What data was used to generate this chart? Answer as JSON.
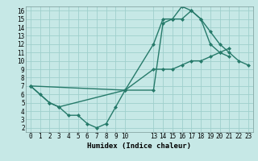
{
  "background_color": "#c6e8e6",
  "grid_color": "#9fcfcc",
  "line_color": "#267a6a",
  "marker_color": "#267a6a",
  "xlabel": "Humidex (Indice chaleur)",
  "xlim": [
    -0.5,
    23.5
  ],
  "ylim": [
    1.5,
    16.5
  ],
  "yticks": [
    2,
    3,
    4,
    5,
    6,
    7,
    8,
    9,
    10,
    11,
    12,
    13,
    14,
    15,
    16
  ],
  "xticks": [
    0,
    1,
    2,
    3,
    4,
    5,
    6,
    7,
    8,
    9,
    10,
    13,
    14,
    15,
    16,
    17,
    18,
    19,
    20,
    21,
    22,
    23
  ],
  "line1_x": [
    0,
    1,
    2,
    3,
    4,
    5,
    6,
    7,
    8,
    9,
    10,
    13,
    14,
    15,
    16,
    17,
    18,
    19,
    20,
    21
  ],
  "line1_y": [
    7,
    6,
    5,
    4.5,
    3.5,
    3.5,
    2.5,
    2,
    2.5,
    4.5,
    6.5,
    6.5,
    14.5,
    15,
    15,
    16,
    15,
    12,
    11,
    10.5
  ],
  "line2_x": [
    0,
    2,
    3,
    10,
    13,
    14,
    15,
    16,
    17,
    18,
    19,
    20,
    21,
    22,
    23
  ],
  "line2_y": [
    7,
    5,
    4.5,
    6.5,
    12,
    15,
    15,
    16.5,
    16,
    15,
    13.5,
    12,
    11,
    10,
    9.5
  ],
  "line3_x": [
    0,
    10,
    13,
    14,
    15,
    16,
    17,
    18,
    19,
    20,
    21
  ],
  "line3_y": [
    7,
    6.5,
    9,
    9,
    9,
    9.5,
    10,
    10,
    10.5,
    11,
    11.5
  ],
  "tick_fontsize": 5.5,
  "xlabel_fontsize": 6.5,
  "linewidth": 1.0,
  "markersize": 2.0
}
